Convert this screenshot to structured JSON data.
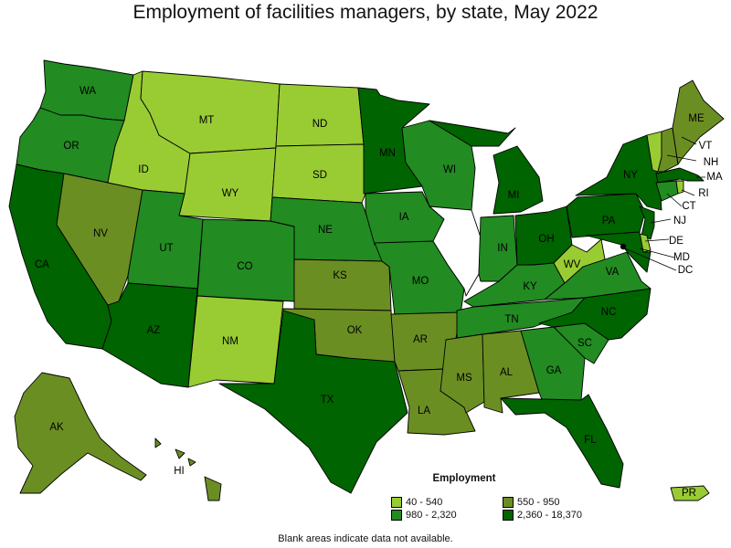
{
  "title": "Employment of facilities managers, by state, May 2022",
  "legend": {
    "title": "Employment",
    "items": [
      {
        "label": "40 - 540",
        "color": "#99cc33"
      },
      {
        "label": "550 - 950",
        "color": "#6b8e23"
      },
      {
        "label": "980 - 2,320",
        "color": "#228b22"
      },
      {
        "label": "2,360 - 18,370",
        "color": "#006400"
      }
    ]
  },
  "footnote": "Blank areas indicate data not available.",
  "states": [
    {
      "code": "WA",
      "tier": 2
    },
    {
      "code": "OR",
      "tier": 2
    },
    {
      "code": "CA",
      "tier": 3
    },
    {
      "code": "NV",
      "tier": 1
    },
    {
      "code": "ID",
      "tier": 0
    },
    {
      "code": "MT",
      "tier": 0
    },
    {
      "code": "WY",
      "tier": 0
    },
    {
      "code": "UT",
      "tier": 2
    },
    {
      "code": "AZ",
      "tier": 3
    },
    {
      "code": "CO",
      "tier": 2
    },
    {
      "code": "NM",
      "tier": 0
    },
    {
      "code": "ND",
      "tier": 0
    },
    {
      "code": "SD",
      "tier": 0
    },
    {
      "code": "NE",
      "tier": 2
    },
    {
      "code": "KS",
      "tier": 1
    },
    {
      "code": "OK",
      "tier": 1
    },
    {
      "code": "TX",
      "tier": 3
    },
    {
      "code": "MN",
      "tier": 3
    },
    {
      "code": "IA",
      "tier": 2
    },
    {
      "code": "MO",
      "tier": 2
    },
    {
      "code": "AR",
      "tier": 1
    },
    {
      "code": "LA",
      "tier": 1
    },
    {
      "code": "WI",
      "tier": 2
    },
    {
      "code": "IL",
      "tier": null
    },
    {
      "code": "MI",
      "tier": 3
    },
    {
      "code": "IN",
      "tier": 2
    },
    {
      "code": "OH",
      "tier": 3
    },
    {
      "code": "KY",
      "tier": 2
    },
    {
      "code": "TN",
      "tier": 2
    },
    {
      "code": "MS",
      "tier": 1
    },
    {
      "code": "AL",
      "tier": 1
    },
    {
      "code": "GA",
      "tier": 2
    },
    {
      "code": "FL",
      "tier": 3
    },
    {
      "code": "SC",
      "tier": 2
    },
    {
      "code": "NC",
      "tier": 3
    },
    {
      "code": "VA",
      "tier": 2
    },
    {
      "code": "WV",
      "tier": 0
    },
    {
      "code": "PA",
      "tier": 3
    },
    {
      "code": "NY",
      "tier": 3
    },
    {
      "code": "ME",
      "tier": 1
    },
    {
      "code": "VT",
      "tier": 0
    },
    {
      "code": "NH",
      "tier": 1
    },
    {
      "code": "MA",
      "tier": 3
    },
    {
      "code": "RI",
      "tier": 0
    },
    {
      "code": "CT",
      "tier": 2
    },
    {
      "code": "NJ",
      "tier": 3
    },
    {
      "code": "DE",
      "tier": 0
    },
    {
      "code": "MD",
      "tier": 3
    },
    {
      "code": "DC",
      "tier": 3
    },
    {
      "code": "AK",
      "tier": 1
    },
    {
      "code": "HI",
      "tier": 1
    },
    {
      "code": "PR",
      "tier": 0
    }
  ]
}
